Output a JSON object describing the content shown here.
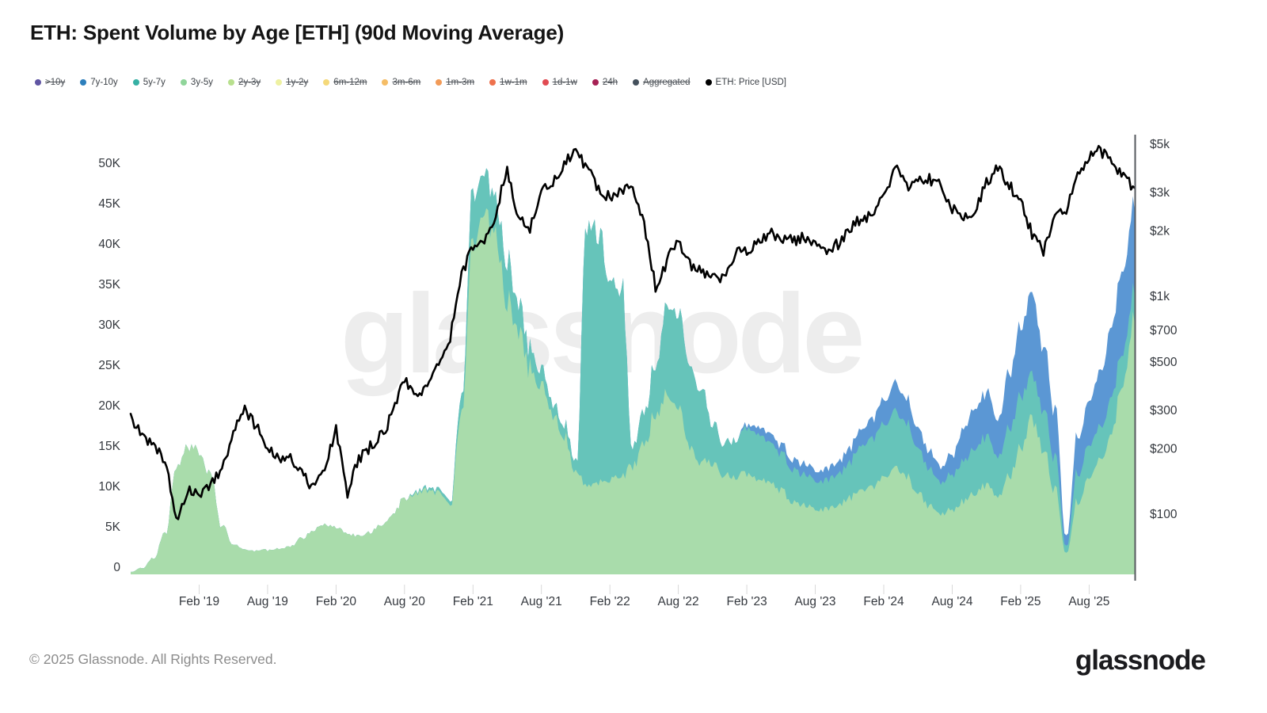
{
  "header": {
    "title": "ETH: Spent Volume by Age [ETH] (90d Moving Average)"
  },
  "legend": {
    "items": [
      {
        "label": ">10y",
        "color": "#6055a3",
        "struck": true
      },
      {
        "label": "7y-10y",
        "color": "#2d7fbc",
        "struck": false
      },
      {
        "label": "5y-7y",
        "color": "#36b0a4",
        "struck": false
      },
      {
        "label": "3y-5y",
        "color": "#90d59a",
        "struck": false
      },
      {
        "label": "2y-3y",
        "color": "#b8e08e",
        "struck": true
      },
      {
        "label": "1y-2y",
        "color": "#eef1a2",
        "struck": true
      },
      {
        "label": "6m-12m",
        "color": "#f5d97a",
        "struck": true
      },
      {
        "label": "3m-6m",
        "color": "#f5bd66",
        "struck": true
      },
      {
        "label": "1m-3m",
        "color": "#f29b58",
        "struck": true
      },
      {
        "label": "1w-1m",
        "color": "#ee714d",
        "struck": true
      },
      {
        "label": "1d-1w",
        "color": "#e14b52",
        "struck": true
      },
      {
        "label": "24h",
        "color": "#a62154",
        "struck": true
      },
      {
        "label": "Aggregated",
        "color": "#44505c",
        "struck": true
      },
      {
        "label": "ETH: Price [USD]",
        "color": "#000000",
        "struck": false
      }
    ]
  },
  "watermark": "glassnode",
  "footer": {
    "copyright": "© 2025 Glassnode. All Rights Reserved.",
    "logo": "glassnode"
  },
  "chart_data": {
    "type": "area",
    "title": "ETH: Spent Volume by Age [ETH] (90d Moving Average)",
    "stacking": "stacked",
    "left_axis": {
      "unit": "K ETH",
      "range": [
        0,
        54
      ],
      "ticks": [
        {
          "v": 0,
          "label": "0"
        },
        {
          "v": 5,
          "label": "5K"
        },
        {
          "v": 10,
          "label": "10K"
        },
        {
          "v": 15,
          "label": "15K"
        },
        {
          "v": 20,
          "label": "20K"
        },
        {
          "v": 25,
          "label": "25K"
        },
        {
          "v": 30,
          "label": "30K"
        },
        {
          "v": 35,
          "label": "35K"
        },
        {
          "v": 40,
          "label": "40K"
        },
        {
          "v": 45,
          "label": "45K"
        },
        {
          "v": 50,
          "label": "50K"
        }
      ]
    },
    "right_axis": {
      "scale": "log",
      "unit": "USD",
      "ticks": [
        {
          "p": 5000,
          "label": "$5k"
        },
        {
          "p": 3000,
          "label": "$3k"
        },
        {
          "p": 2000,
          "label": "$2k"
        },
        {
          "p": 1000,
          "label": "$1k"
        },
        {
          "p": 700,
          "label": "$700"
        },
        {
          "p": 500,
          "label": "$500"
        },
        {
          "p": 300,
          "label": "$300"
        },
        {
          "p": 200,
          "label": "$200"
        },
        {
          "p": 100,
          "label": "$100"
        }
      ]
    },
    "x_ticks": [
      {
        "i": 6,
        "label": "Feb '19"
      },
      {
        "i": 12,
        "label": "Aug '19"
      },
      {
        "i": 18,
        "label": "Feb '20"
      },
      {
        "i": 24,
        "label": "Aug '20"
      },
      {
        "i": 30,
        "label": "Feb '21"
      },
      {
        "i": 36,
        "label": "Aug '21"
      },
      {
        "i": 42,
        "label": "Feb '22"
      },
      {
        "i": 48,
        "label": "Aug '22"
      },
      {
        "i": 54,
        "label": "Feb '23"
      },
      {
        "i": 60,
        "label": "Aug '23"
      },
      {
        "i": 66,
        "label": "Feb '24"
      },
      {
        "i": 72,
        "label": "Aug '24"
      },
      {
        "i": 78,
        "label": "Feb '25"
      },
      {
        "i": 84,
        "label": "Aug '25"
      }
    ],
    "categories": [
      "2018-08",
      "2018-09",
      "2018-10",
      "2018-11",
      "2018-12",
      "2019-01",
      "2019-02",
      "2019-03",
      "2019-04",
      "2019-05",
      "2019-06",
      "2019-07",
      "2019-08",
      "2019-09",
      "2019-10",
      "2019-11",
      "2019-12",
      "2020-01",
      "2020-02",
      "2020-03",
      "2020-04",
      "2020-05",
      "2020-06",
      "2020-07",
      "2020-08",
      "2020-09",
      "2020-10",
      "2020-11",
      "2020-12",
      "2021-01",
      "2021-02",
      "2021-03",
      "2021-04",
      "2021-05",
      "2021-06",
      "2021-07",
      "2021-08",
      "2021-09",
      "2021-10",
      "2021-11",
      "2021-12",
      "2022-01",
      "2022-02",
      "2022-03",
      "2022-04",
      "2022-05",
      "2022-06",
      "2022-07",
      "2022-08",
      "2022-09",
      "2022-10",
      "2022-11",
      "2022-12",
      "2023-01",
      "2023-02",
      "2023-03",
      "2023-04",
      "2023-05",
      "2023-06",
      "2023-07",
      "2023-08",
      "2023-09",
      "2023-10",
      "2023-11",
      "2023-12",
      "2024-01",
      "2024-02",
      "2024-03",
      "2024-04",
      "2024-05",
      "2024-06",
      "2024-07",
      "2024-08",
      "2024-09",
      "2024-10",
      "2024-11",
      "2024-12",
      "2025-01",
      "2025-02",
      "2025-03",
      "2025-04",
      "2025-05",
      "2025-06",
      "2025-07",
      "2025-08",
      "2025-09",
      "2025-10",
      "2025-11",
      "2025-12"
    ],
    "series": [
      {
        "name": "3y-5y",
        "type": "area",
        "axis": "left",
        "color": "#a9dcab",
        "values": [
          0.3,
          0.8,
          2.0,
          5.0,
          13.0,
          15.8,
          15.2,
          12.5,
          6.0,
          3.8,
          3.0,
          2.9,
          3.0,
          3.2,
          3.5,
          4.5,
          5.5,
          6.0,
          5.8,
          5.0,
          4.8,
          5.2,
          6.2,
          7.5,
          9.5,
          10.0,
          10.5,
          10.0,
          8.5,
          20.0,
          42.0,
          44.0,
          42.0,
          34.0,
          29.5,
          25.5,
          23.0,
          20.0,
          17.0,
          12.5,
          11.0,
          11.5,
          11.8,
          12.0,
          13.5,
          16.0,
          20.0,
          22.0,
          20.0,
          16.0,
          14.0,
          13.5,
          12.5,
          12.0,
          12.5,
          12.0,
          11.5,
          10.5,
          9.0,
          8.5,
          8.0,
          8.0,
          8.5,
          9.5,
          10.5,
          11.0,
          12.0,
          13.5,
          12.0,
          10.0,
          8.5,
          7.5,
          8.0,
          9.0,
          10.0,
          11.0,
          9.5,
          12.0,
          15.5,
          19.0,
          15.5,
          10.5,
          2.8,
          9.0,
          11.5,
          14.0,
          18.0,
          24.0,
          31.0
        ]
      },
      {
        "name": "5y-7y",
        "type": "area",
        "axis": "left",
        "color": "#66c4ba",
        "values": [
          0,
          0,
          0,
          0,
          0,
          0,
          0,
          0,
          0,
          0,
          0,
          0,
          0,
          0,
          0,
          0,
          0,
          0,
          0,
          0,
          0,
          0,
          0,
          0,
          0,
          0.2,
          0.3,
          0.4,
          0.5,
          2.0,
          6.0,
          5.0,
          4.5,
          5.0,
          3.5,
          2.5,
          2.0,
          1.5,
          1.5,
          1.5,
          31.5,
          31.0,
          24.0,
          23.5,
          2.5,
          4.0,
          6.0,
          11.0,
          11.5,
          10.0,
          9.0,
          5.0,
          4.0,
          4.5,
          5.5,
          5.5,
          5.0,
          4.5,
          4.0,
          3.8,
          3.5,
          3.6,
          3.8,
          4.5,
          5.5,
          6.0,
          6.5,
          7.0,
          6.5,
          5.5,
          4.5,
          4.0,
          4.5,
          5.0,
          5.5,
          6.0,
          5.0,
          6.0,
          6.5,
          5.5,
          5.0,
          4.0,
          0.9,
          3.5,
          4.0,
          4.0,
          4.5,
          4.0,
          3.5
        ]
      },
      {
        "name": "7y-10y",
        "type": "area",
        "axis": "left",
        "color": "#5b97d4",
        "values": [
          0,
          0,
          0,
          0,
          0,
          0,
          0,
          0,
          0,
          0,
          0,
          0,
          0,
          0,
          0,
          0,
          0,
          0,
          0,
          0,
          0,
          0,
          0,
          0,
          0,
          0,
          0,
          0,
          0,
          0,
          0,
          0,
          0,
          0,
          0,
          0,
          0,
          0,
          0,
          0,
          0,
          0,
          0,
          0,
          0,
          0,
          0,
          0,
          0,
          0,
          0,
          0,
          0,
          0,
          0.4,
          0.9,
          1.1,
          1.1,
          1.2,
          1.3,
          1.3,
          1.4,
          1.5,
          1.8,
          2.0,
          2.5,
          3.0,
          3.5,
          3.0,
          2.5,
          2.2,
          2.0,
          2.5,
          4.0,
          5.0,
          5.5,
          4.5,
          7.0,
          8.5,
          10.0,
          8.0,
          6.0,
          1.3,
          4.5,
          5.5,
          7.0,
          9.0,
          10.0,
          10.5
        ]
      },
      {
        "name": "ETH: Price [USD]",
        "type": "line",
        "axis": "right",
        "color": "#000000",
        "values": [
          285,
          230,
          205,
          180,
          95,
          130,
          125,
          137,
          165,
          235,
          300,
          255,
          200,
          180,
          180,
          155,
          132,
          160,
          250,
          125,
          180,
          205,
          232,
          290,
          420,
          355,
          380,
          510,
          650,
          1250,
          1700,
          1800,
          2400,
          3900,
          2250,
          2050,
          3150,
          3300,
          4050,
          4650,
          3900,
          3050,
          2850,
          3050,
          3200,
          2200,
          1100,
          1450,
          1850,
          1400,
          1350,
          1200,
          1210,
          1560,
          1650,
          1750,
          2000,
          1850,
          1800,
          1880,
          1700,
          1630,
          1750,
          2000,
          2300,
          2350,
          2900,
          3900,
          3200,
          3400,
          3450,
          3250,
          2550,
          2350,
          2500,
          3350,
          3900,
          3250,
          2700,
          1950,
          1600,
          2450,
          2500,
          3550,
          4400,
          4700,
          4100,
          3500,
          3150
        ]
      }
    ]
  }
}
